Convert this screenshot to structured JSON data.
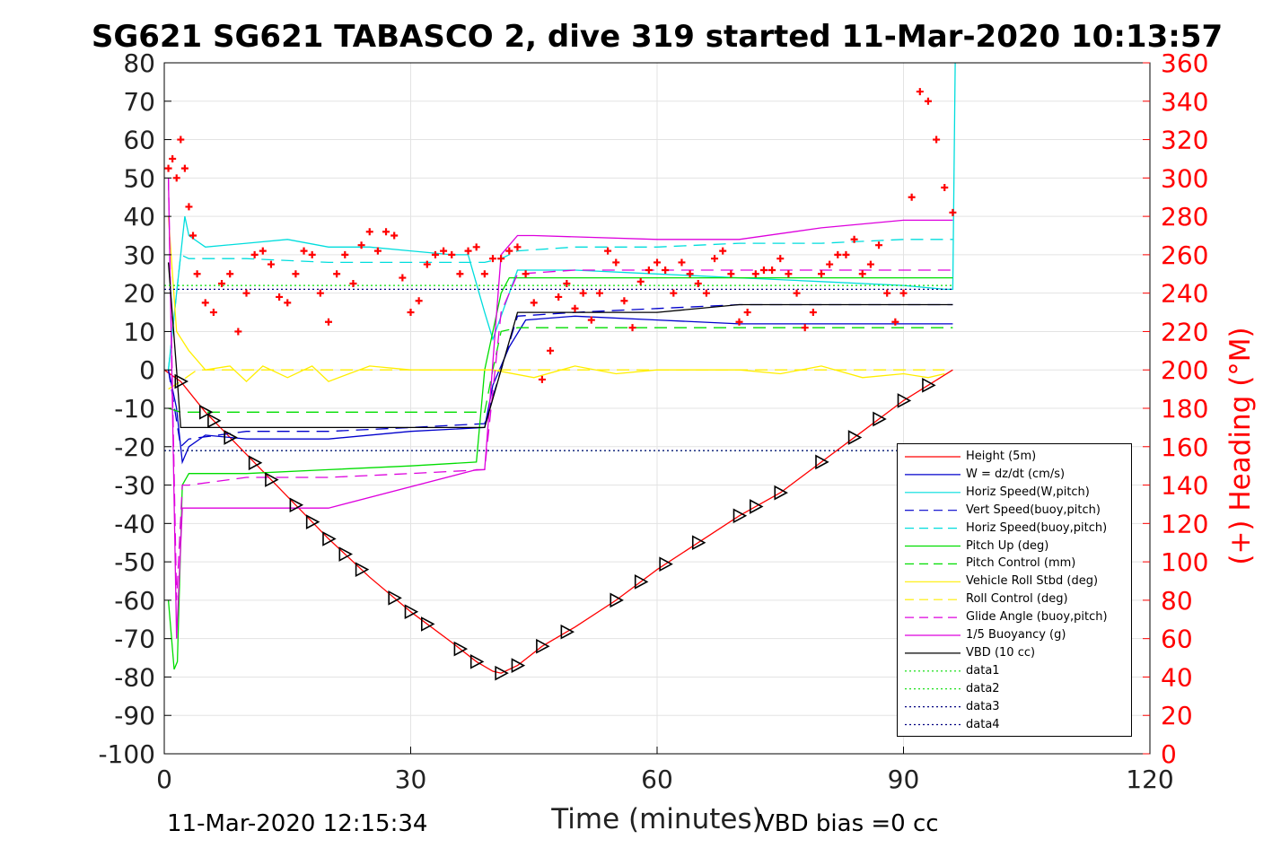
{
  "chart_data": {
    "type": "line",
    "title": "SG621 SG621 TABASCO 2, dive 319 started 11-Mar-2020 10:13:57",
    "xlabel": "Time (minutes)",
    "ylabel": "",
    "y2label": "(+) Heading (°M)",
    "xlim": [
      0,
      120
    ],
    "ylim": [
      -100,
      80
    ],
    "y2lim": [
      0,
      360
    ],
    "xticks": [
      0,
      30,
      60,
      90,
      120
    ],
    "yticks": [
      80,
      70,
      60,
      50,
      40,
      30,
      20,
      10,
      0,
      -10,
      -20,
      -30,
      -40,
      -50,
      -60,
      -70,
      -80,
      -90,
      -100
    ],
    "y2ticks": [
      360,
      340,
      320,
      300,
      280,
      260,
      240,
      220,
      200,
      180,
      160,
      140,
      120,
      100,
      80,
      60,
      40,
      20,
      0
    ],
    "grid": true,
    "legend_position": "lower-right",
    "footer_left": "11-Mar-2020 12:15:34",
    "footer_right": "VBD bias =0 cc",
    "series": [
      {
        "name": "Height (5m)",
        "color": "#ff0000",
        "style": "solid",
        "x": [
          0,
          2,
          5,
          10,
          15,
          20,
          25,
          30,
          35,
          38,
          40,
          41,
          43,
          46,
          50,
          55,
          60,
          65,
          70,
          75,
          80,
          85,
          90,
          93,
          96
        ],
        "y": [
          0,
          -3,
          -11,
          -22,
          -33,
          -44,
          -54,
          -63,
          -71,
          -76,
          -78.5,
          -79,
          -77,
          -72,
          -67,
          -60,
          -52,
          -45,
          -38,
          -32,
          -24,
          -16,
          -8,
          -4,
          0
        ]
      },
      {
        "name": "W = dz/dt (cm/s)",
        "color": "#0000cc",
        "style": "solid",
        "x": [
          0.5,
          1.5,
          2.2,
          3,
          5,
          10,
          20,
          30,
          39,
          40,
          42,
          44,
          50,
          60,
          70,
          80,
          90,
          93,
          96
        ],
        "y": [
          0,
          -10,
          -24,
          -20,
          -17,
          -18,
          -18,
          -16,
          -15,
          -4,
          6,
          13,
          14,
          13,
          12,
          12,
          12,
          12,
          12
        ]
      },
      {
        "name": "Horiz Speed(W,pitch)",
        "color": "#00dddd",
        "style": "solid",
        "x": [
          0.5,
          1.5,
          2.5,
          3,
          5,
          10,
          15,
          20,
          25,
          30,
          35,
          37,
          39,
          40,
          41,
          43,
          50,
          60,
          70,
          80,
          90,
          95,
          96,
          96.3
        ],
        "y": [
          0,
          20,
          40,
          35,
          32,
          33,
          34,
          32,
          32,
          31,
          30,
          30,
          15,
          8,
          14,
          26,
          26,
          25,
          24,
          23,
          22,
          21,
          21,
          80
        ]
      },
      {
        "name": "Vert Speed(buoy,pitch)",
        "color": "#0000cc",
        "style": "dashed",
        "x": [
          0.5,
          2,
          3,
          10,
          20,
          30,
          39,
          41,
          43,
          50,
          60,
          70,
          80,
          90,
          96
        ],
        "y": [
          0,
          -20,
          -18,
          -16,
          -16,
          -15,
          -14,
          0,
          14,
          15,
          16,
          17,
          17,
          17,
          17
        ]
      },
      {
        "name": "Horiz Speed(buoy,pitch)",
        "color": "#00dddd",
        "style": "dashed",
        "x": [
          0.5,
          2,
          3,
          10,
          20,
          30,
          39,
          41,
          43,
          50,
          60,
          70,
          80,
          90,
          96
        ],
        "y": [
          0,
          30,
          29,
          29,
          28,
          28,
          28,
          29,
          31,
          32,
          32,
          33,
          33,
          34,
          34
        ]
      },
      {
        "name": "Pitch Up (deg)",
        "color": "#00dd00",
        "style": "solid",
        "x": [
          0.5,
          1.2,
          1.6,
          2.2,
          3,
          10,
          20,
          30,
          38,
          39,
          41,
          42,
          50,
          60,
          70,
          80,
          90,
          96
        ],
        "y": [
          -60,
          -78,
          -76,
          -30,
          -27,
          -27,
          -26,
          -25,
          -24,
          0,
          20,
          24,
          24,
          24,
          24,
          24,
          24,
          24
        ]
      },
      {
        "name": "Pitch Control (mm)",
        "color": "#00dd00",
        "style": "dashed",
        "x": [
          0.5,
          2,
          3,
          20,
          39,
          40,
          41,
          43,
          60,
          96
        ],
        "y": [
          -10,
          -11,
          -11,
          -11,
          -11,
          0,
          10,
          11,
          11,
          11
        ]
      },
      {
        "name": "Vehicle Roll Stbd (deg)",
        "color": "#ffee00",
        "style": "solid",
        "x": [
          0.5,
          1.5,
          3,
          5,
          8,
          10,
          12,
          15,
          18,
          20,
          25,
          30,
          35,
          40,
          45,
          50,
          55,
          60,
          65,
          70,
          75,
          80,
          85,
          90,
          93,
          95
        ],
        "y": [
          40,
          10,
          5,
          0,
          1,
          -3,
          1,
          -2,
          1,
          -3,
          1,
          0,
          0,
          0,
          -2,
          1,
          -1,
          0,
          0,
          0,
          -1,
          1,
          -2,
          -1,
          -2,
          -1
        ]
      },
      {
        "name": "Roll Control (deg)",
        "color": "#ffee00",
        "style": "dashed",
        "x": [
          0.5,
          2,
          4,
          20,
          40,
          60,
          90,
          95
        ],
        "y": [
          -5,
          -3,
          0,
          0,
          0,
          0,
          0,
          0
        ]
      },
      {
        "name": "Glide Angle (buoy,pitch)",
        "color": "#dd00dd",
        "style": "dashed",
        "x": [
          0.5,
          1.5,
          2.2,
          3,
          10,
          20,
          30,
          39,
          41,
          43,
          50,
          60,
          70,
          80,
          90,
          96
        ],
        "y": [
          50,
          -60,
          -30,
          -30,
          -28,
          -28,
          -27,
          -26,
          15,
          25,
          26,
          26,
          26,
          26,
          26,
          26
        ]
      },
      {
        "name": "1/5 Buoyancy (g)",
        "color": "#dd00dd",
        "style": "solid",
        "x": [
          0.5,
          1.5,
          2.2,
          3,
          5,
          20,
          38,
          39,
          41,
          43,
          45,
          60,
          70,
          80,
          90,
          93,
          95,
          96
        ],
        "y": [
          50,
          -70,
          -36,
          -36,
          -36,
          -36,
          -26,
          -26,
          30,
          35,
          35,
          34,
          34,
          37,
          39,
          39,
          39,
          39
        ]
      },
      {
        "name": "VBD (10 cc)",
        "color": "#000000",
        "style": "solid",
        "x": [
          0.5,
          1.5,
          2,
          3,
          20,
          38,
          39,
          41,
          43,
          60,
          70,
          80,
          90,
          96
        ],
        "y": [
          28,
          0,
          -15,
          -15,
          -15,
          -15,
          -15,
          0,
          15,
          15,
          17,
          17,
          17,
          17
        ]
      },
      {
        "name": "data1",
        "color": "#00dd00",
        "style": "dotted",
        "x": [
          0,
          96
        ],
        "y": [
          22,
          22
        ]
      },
      {
        "name": "data2",
        "color": "#00dd00",
        "style": "dotted",
        "x": [
          0,
          96
        ],
        "y": [
          -21,
          -21
        ]
      },
      {
        "name": "data3",
        "color": "#000080",
        "style": "dotted",
        "x": [
          0,
          96
        ],
        "y": [
          21,
          21
        ]
      },
      {
        "name": "data4",
        "color": "#000080",
        "style": "dotted",
        "x": [
          0,
          96
        ],
        "y": [
          -21,
          -21
        ]
      }
    ],
    "heading": {
      "name": "(+) Heading (°M)",
      "color": "#ff0000",
      "axis": "right",
      "marker": "+",
      "x": [
        0.5,
        1,
        1.5,
        2,
        2.5,
        3,
        3.5,
        4,
        5,
        6,
        7,
        8,
        9,
        10,
        11,
        12,
        13,
        14,
        15,
        16,
        17,
        18,
        19,
        20,
        21,
        22,
        23,
        24,
        25,
        26,
        27,
        28,
        29,
        30,
        31,
        32,
        33,
        34,
        35,
        36,
        37,
        38,
        39,
        40,
        41,
        42,
        43,
        44,
        45,
        46,
        47,
        48,
        49,
        50,
        51,
        52,
        53,
        54,
        55,
        56,
        57,
        58,
        59,
        60,
        61,
        62,
        63,
        64,
        65,
        66,
        67,
        68,
        69,
        70,
        71,
        72,
        73,
        74,
        75,
        76,
        77,
        78,
        79,
        80,
        81,
        82,
        83,
        84,
        85,
        86,
        87,
        88,
        89,
        90,
        91,
        92,
        93,
        94,
        95,
        96
      ],
      "y": [
        305,
        310,
        300,
        320,
        305,
        285,
        270,
        250,
        235,
        230,
        245,
        250,
        220,
        240,
        260,
        262,
        255,
        238,
        235,
        250,
        262,
        260,
        240,
        225,
        250,
        260,
        245,
        265,
        272,
        262,
        272,
        270,
        248,
        230,
        236,
        255,
        260,
        262,
        260,
        250,
        262,
        264,
        250,
        258,
        258,
        262,
        264,
        250,
        235,
        195,
        210,
        238,
        245,
        232,
        240,
        226,
        240,
        262,
        256,
        236,
        222,
        246,
        252,
        256,
        252,
        240,
        256,
        250,
        245,
        240,
        258,
        262,
        250,
        225,
        230,
        250,
        252,
        252,
        258,
        250,
        240,
        222,
        230,
        250,
        255,
        260,
        260,
        268,
        250,
        255,
        265,
        240,
        225,
        240,
        290,
        345,
        340,
        320,
        295,
        282
      ]
    }
  },
  "legend": {
    "items": [
      {
        "label": "Height (5m)",
        "color": "#ff0000",
        "dash": ""
      },
      {
        "label": "W = dz/dt (cm/s)",
        "color": "#0000cc",
        "dash": ""
      },
      {
        "label": "Horiz Speed(W,pitch)",
        "color": "#00dddd",
        "dash": ""
      },
      {
        "label": "Vert Speed(buoy,pitch)",
        "color": "#0000cc",
        "dash": "10,6"
      },
      {
        "label": "Horiz Speed(buoy,pitch)",
        "color": "#00dddd",
        "dash": "10,6"
      },
      {
        "label": "Pitch Up (deg)",
        "color": "#00dd00",
        "dash": ""
      },
      {
        "label": "Pitch Control (mm)",
        "color": "#00dd00",
        "dash": "10,6"
      },
      {
        "label": "Vehicle Roll Stbd (deg)",
        "color": "#ffee00",
        "dash": ""
      },
      {
        "label": "Roll Control (deg)",
        "color": "#ffee00",
        "dash": "10,6"
      },
      {
        "label": "Glide Angle (buoy,pitch)",
        "color": "#dd00dd",
        "dash": "10,6"
      },
      {
        "label": "1/5 Buoyancy (g)",
        "color": "#dd00dd",
        "dash": ""
      },
      {
        "label": "VBD (10 cc)",
        "color": "#000000",
        "dash": ""
      },
      {
        "label": "data1",
        "color": "#00dd00",
        "dash": "2,3"
      },
      {
        "label": "data2",
        "color": "#00dd00",
        "dash": "2,3"
      },
      {
        "label": "data3",
        "color": "#000080",
        "dash": "2,3"
      },
      {
        "label": "data4",
        "color": "#000080",
        "dash": "2,3"
      }
    ]
  }
}
